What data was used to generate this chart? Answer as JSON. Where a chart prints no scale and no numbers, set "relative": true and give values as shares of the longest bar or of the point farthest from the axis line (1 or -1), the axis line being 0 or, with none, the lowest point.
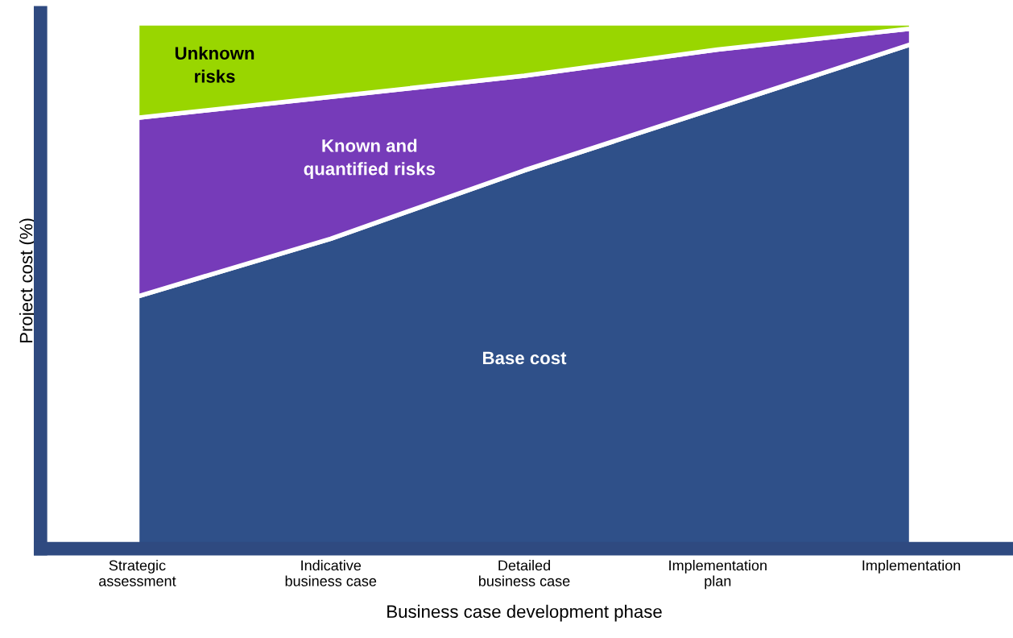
{
  "chart_data": {
    "type": "area",
    "stacked": true,
    "relative": true,
    "xlabel": "Business case development phase",
    "ylabel": "Project cost (%)",
    "categories": [
      "Strategic\nassessment",
      "Indicative\nbusiness case",
      "Detailed\nbusiness case",
      "Implementation\nplan",
      "Implementation"
    ],
    "series": [
      {
        "name": "Base cost",
        "color": "#2f5089",
        "values": [
          0.48,
          0.59,
          0.72,
          0.84,
          0.96
        ]
      },
      {
        "name": "Known and\nquantified risks",
        "color": "#763bb9",
        "values": [
          0.34,
          0.27,
          0.18,
          0.11,
          0.03
        ]
      },
      {
        "name": "Unknown\nrisks",
        "color": "#99d600",
        "values": [
          0.18,
          0.14,
          0.1,
          0.05,
          0.01
        ]
      }
    ],
    "legend": false,
    "grid": false
  }
}
